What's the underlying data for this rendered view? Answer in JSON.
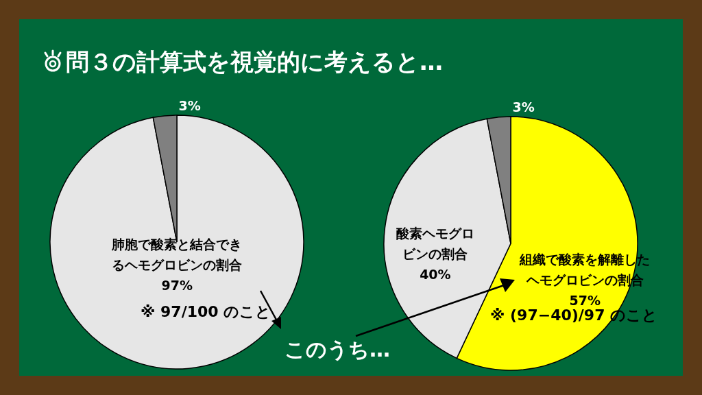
{
  "chart_data": [
    {
      "type": "pie",
      "title": "問３の計算式を視覚的に考えると…",
      "categories": [
        "肺胞で酸素と結合できるヘモグロビンの割合",
        null
      ],
      "values": [
        97,
        3
      ],
      "colors": [
        "#e6e6e6",
        "#808080"
      ],
      "value_labels": [
        "97%",
        "3%"
      ],
      "annotations": [
        "※ 97/100 のこと"
      ]
    },
    {
      "type": "pie",
      "categories": [
        "組織で酸素を解離したヘモグロビンの割合",
        "酸素ヘモグロビンの割合",
        null
      ],
      "values": [
        57,
        40,
        3
      ],
      "colors": [
        "#ffff00",
        "#e6e6e6",
        "#808080"
      ],
      "value_labels": [
        "57%",
        "40%",
        "3%"
      ],
      "annotations": [
        "※ (97−40)/97 のこと",
        "このうち…"
      ]
    }
  ]
}
